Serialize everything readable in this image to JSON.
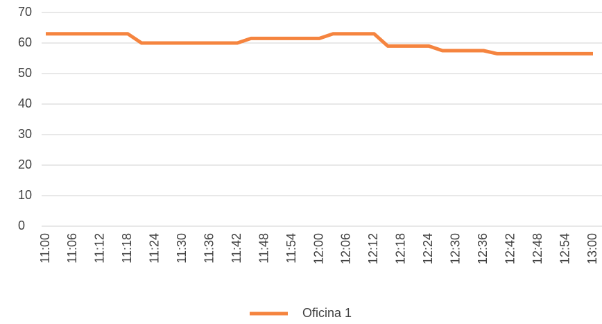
{
  "chart_data": {
    "type": "line",
    "categories": [
      "11:00",
      null,
      "11:06",
      null,
      "11:12",
      null,
      "11:18",
      null,
      "11:24",
      null,
      "11:30",
      null,
      "11:36",
      null,
      "11:42",
      null,
      "11:48",
      null,
      "11:54",
      null,
      "12:00",
      null,
      "12:06",
      null,
      "12:12",
      null,
      "12:18",
      null,
      "12:24",
      null,
      "12:30",
      null,
      "12:36",
      null,
      "12:42",
      null,
      "12:48",
      null,
      "12:54",
      null,
      "13:00"
    ],
    "series": [
      {
        "name": "Oficina 1",
        "color": "#f5843f",
        "values": [
          63,
          63,
          63,
          63,
          63,
          63,
          63,
          60,
          60,
          60,
          60,
          60,
          60,
          60,
          60,
          61.5,
          61.5,
          61.5,
          61.5,
          61.5,
          61.5,
          63,
          63,
          63,
          63,
          59,
          59,
          59,
          59,
          57.5,
          57.5,
          57.5,
          57.5,
          56.5,
          56.5,
          56.5,
          56.5,
          56.5,
          56.5,
          56.5,
          56.5
        ]
      }
    ],
    "ylim": [
      0,
      70
    ],
    "yticks": [
      0,
      10,
      20,
      30,
      40,
      50,
      60,
      70
    ],
    "grid": true,
    "legend": "bottom"
  }
}
